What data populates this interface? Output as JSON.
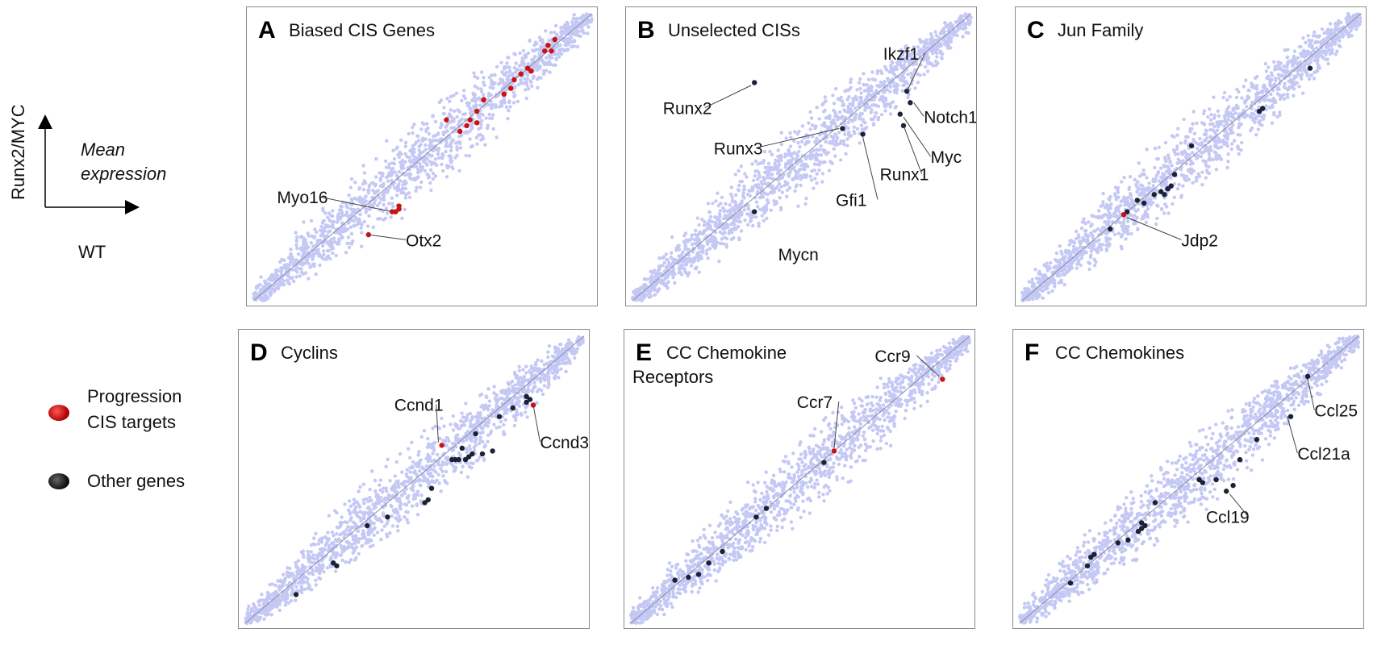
{
  "guide": {
    "ylabel": "Runx2/MYC",
    "xlabel": "WT",
    "note_line1": "Mean",
    "note_line2": "expression"
  },
  "legend": {
    "items": [
      {
        "line1": "Progression",
        "line2": "CIS targets",
        "color": "#cc1111"
      },
      {
        "line1": "Other genes",
        "line2": "",
        "color": "#1a1a2a"
      }
    ]
  },
  "colors": {
    "cloud": "#c4c8f4",
    "diagonal": "#8a8fa8",
    "red": "#cc1111",
    "dark": "#1a2233",
    "frame": "#8c8c8c"
  },
  "chart_data": [
    {
      "type": "scatter",
      "letter": "A",
      "title": "Biased CIS Genes",
      "xlim": [
        0,
        1
      ],
      "ylim": [
        0,
        1
      ],
      "points": [
        {
          "x": 0.87,
          "y": 0.89,
          "c": "red"
        },
        {
          "x": 0.89,
          "y": 0.91,
          "c": "red"
        },
        {
          "x": 0.86,
          "y": 0.87,
          "c": "red"
        },
        {
          "x": 0.88,
          "y": 0.87,
          "c": "red"
        },
        {
          "x": 0.57,
          "y": 0.63,
          "c": "red"
        },
        {
          "x": 0.64,
          "y": 0.63,
          "c": "red"
        },
        {
          "x": 0.66,
          "y": 0.62,
          "c": "red"
        },
        {
          "x": 0.63,
          "y": 0.61,
          "c": "red"
        },
        {
          "x": 0.61,
          "y": 0.59,
          "c": "red"
        },
        {
          "x": 0.68,
          "y": 0.7,
          "c": "red"
        },
        {
          "x": 0.66,
          "y": 0.66,
          "c": "red"
        },
        {
          "x": 0.74,
          "y": 0.72,
          "c": "red"
        },
        {
          "x": 0.76,
          "y": 0.74,
          "c": "red"
        },
        {
          "x": 0.77,
          "y": 0.77,
          "c": "red"
        },
        {
          "x": 0.79,
          "y": 0.79,
          "c": "red"
        },
        {
          "x": 0.81,
          "y": 0.81,
          "c": "red"
        },
        {
          "x": 0.82,
          "y": 0.8,
          "c": "red"
        },
        {
          "x": 0.42,
          "y": 0.31,
          "c": "red"
        },
        {
          "x": 0.43,
          "y": 0.32,
          "c": "red"
        },
        {
          "x": 0.41,
          "y": 0.31,
          "c": "red"
        },
        {
          "x": 0.43,
          "y": 0.33,
          "c": "red"
        },
        {
          "x": 0.34,
          "y": 0.23,
          "c": "red"
        }
      ],
      "labels": [
        {
          "text": "Myo16",
          "tx": 0.07,
          "ty": 0.34,
          "px": 0.41,
          "py": 0.31
        },
        {
          "text": "Otx2",
          "tx": 0.45,
          "ty": 0.19,
          "px": 0.34,
          "py": 0.23
        }
      ]
    },
    {
      "type": "scatter",
      "letter": "B",
      "title": "Unselected CISs",
      "xlim": [
        0,
        1
      ],
      "ylim": [
        0,
        1
      ],
      "points": [
        {
          "x": 0.36,
          "y": 0.76,
          "c": "dark"
        },
        {
          "x": 0.62,
          "y": 0.6,
          "c": "dark"
        },
        {
          "x": 0.68,
          "y": 0.58,
          "c": "dark"
        },
        {
          "x": 0.81,
          "y": 0.73,
          "c": "dark"
        },
        {
          "x": 0.82,
          "y": 0.69,
          "c": "dark"
        },
        {
          "x": 0.79,
          "y": 0.65,
          "c": "dark"
        },
        {
          "x": 0.8,
          "y": 0.61,
          "c": "dark"
        },
        {
          "x": 0.36,
          "y": 0.31,
          "c": "dark"
        }
      ],
      "labels": [
        {
          "text": "Runx2",
          "tx": 0.09,
          "ty": 0.65,
          "px": 0.35,
          "py": 0.75
        },
        {
          "text": "Ikzf1",
          "tx": 0.74,
          "ty": 0.84,
          "px": 0.81,
          "py": 0.73
        },
        {
          "text": "Notch1",
          "tx": 0.86,
          "ty": 0.62,
          "px": 0.83,
          "py": 0.69
        },
        {
          "text": "Runx3",
          "tx": 0.24,
          "ty": 0.51,
          "px": 0.61,
          "py": 0.6
        },
        {
          "text": "Myc",
          "tx": 0.88,
          "ty": 0.48,
          "px": 0.8,
          "py": 0.64
        },
        {
          "text": "Runx1",
          "tx": 0.73,
          "ty": 0.42,
          "px": 0.8,
          "py": 0.61
        },
        {
          "text": "Gfi1",
          "tx": 0.6,
          "ty": 0.33,
          "px": 0.68,
          "py": 0.57
        },
        {
          "text": "Mycn",
          "tx": 0.43,
          "ty": 0.14,
          "px": null,
          "py": null
        }
      ]
    },
    {
      "type": "scatter",
      "letter": "C",
      "title": "Jun Family",
      "xlim": [
        0,
        1
      ],
      "ylim": [
        0,
        1
      ],
      "points": [
        {
          "x": 0.85,
          "y": 0.81,
          "c": "dark"
        },
        {
          "x": 0.7,
          "y": 0.66,
          "c": "dark"
        },
        {
          "x": 0.71,
          "y": 0.67,
          "c": "dark"
        },
        {
          "x": 0.5,
          "y": 0.54,
          "c": "dark"
        },
        {
          "x": 0.45,
          "y": 0.44,
          "c": "dark"
        },
        {
          "x": 0.44,
          "y": 0.4,
          "c": "dark"
        },
        {
          "x": 0.43,
          "y": 0.39,
          "c": "dark"
        },
        {
          "x": 0.42,
          "y": 0.37,
          "c": "dark"
        },
        {
          "x": 0.39,
          "y": 0.37,
          "c": "dark"
        },
        {
          "x": 0.41,
          "y": 0.38,
          "c": "dark"
        },
        {
          "x": 0.36,
          "y": 0.34,
          "c": "dark"
        },
        {
          "x": 0.34,
          "y": 0.35,
          "c": "dark"
        },
        {
          "x": 0.31,
          "y": 0.31,
          "c": "dark"
        },
        {
          "x": 0.26,
          "y": 0.25,
          "c": "dark"
        },
        {
          "x": 0.3,
          "y": 0.3,
          "c": "red"
        }
      ],
      "labels": [
        {
          "text": "Jdp2",
          "tx": 0.47,
          "ty": 0.19,
          "px": 0.31,
          "py": 0.29
        }
      ]
    },
    {
      "type": "scatter",
      "letter": "D",
      "title": "Cyclins",
      "xlim": [
        0,
        1
      ],
      "ylim": [
        0,
        1
      ],
      "points": [
        {
          "x": 0.83,
          "y": 0.79,
          "c": "dark"
        },
        {
          "x": 0.84,
          "y": 0.78,
          "c": "dark"
        },
        {
          "x": 0.83,
          "y": 0.77,
          "c": "dark"
        },
        {
          "x": 0.79,
          "y": 0.75,
          "c": "dark"
        },
        {
          "x": 0.75,
          "y": 0.72,
          "c": "dark"
        },
        {
          "x": 0.58,
          "y": 0.62,
          "c": "red"
        },
        {
          "x": 0.68,
          "y": 0.66,
          "c": "dark"
        },
        {
          "x": 0.64,
          "y": 0.61,
          "c": "dark"
        },
        {
          "x": 0.61,
          "y": 0.57,
          "c": "dark"
        },
        {
          "x": 0.62,
          "y": 0.57,
          "c": "dark"
        },
        {
          "x": 0.63,
          "y": 0.57,
          "c": "dark"
        },
        {
          "x": 0.65,
          "y": 0.57,
          "c": "dark"
        },
        {
          "x": 0.66,
          "y": 0.58,
          "c": "dark"
        },
        {
          "x": 0.67,
          "y": 0.59,
          "c": "dark"
        },
        {
          "x": 0.7,
          "y": 0.59,
          "c": "dark"
        },
        {
          "x": 0.73,
          "y": 0.6,
          "c": "dark"
        },
        {
          "x": 0.55,
          "y": 0.47,
          "c": "dark"
        },
        {
          "x": 0.54,
          "y": 0.43,
          "c": "dark"
        },
        {
          "x": 0.53,
          "y": 0.42,
          "c": "dark"
        },
        {
          "x": 0.42,
          "y": 0.37,
          "c": "dark"
        },
        {
          "x": 0.36,
          "y": 0.34,
          "c": "dark"
        },
        {
          "x": 0.26,
          "y": 0.21,
          "c": "dark"
        },
        {
          "x": 0.27,
          "y": 0.2,
          "c": "dark"
        },
        {
          "x": 0.15,
          "y": 0.1,
          "c": "dark"
        },
        {
          "x": 0.85,
          "y": 0.76,
          "c": "red"
        }
      ],
      "labels": [
        {
          "text": "Ccnd1",
          "tx": 0.44,
          "ty": 0.74,
          "px": 0.57,
          "py": 0.63
        },
        {
          "text": "Ccnd3",
          "tx": 0.87,
          "ty": 0.61,
          "px": 0.85,
          "py": 0.76
        }
      ]
    },
    {
      "type": "scatter",
      "letter": "E",
      "title": "CC Chemokine Receptors",
      "title_line1": "CC Chemokine",
      "title_line2": "Receptors",
      "xlim": [
        0,
        1
      ],
      "ylim": [
        0,
        1
      ],
      "points": [
        {
          "x": 0.92,
          "y": 0.85,
          "c": "red"
        },
        {
          "x": 0.6,
          "y": 0.6,
          "c": "red"
        },
        {
          "x": 0.57,
          "y": 0.56,
          "c": "dark"
        },
        {
          "x": 0.4,
          "y": 0.4,
          "c": "dark"
        },
        {
          "x": 0.37,
          "y": 0.37,
          "c": "dark"
        },
        {
          "x": 0.27,
          "y": 0.25,
          "c": "dark"
        },
        {
          "x": 0.23,
          "y": 0.21,
          "c": "dark"
        },
        {
          "x": 0.2,
          "y": 0.17,
          "c": "dark"
        },
        {
          "x": 0.13,
          "y": 0.15,
          "c": "dark"
        },
        {
          "x": 0.17,
          "y": 0.16,
          "c": "dark"
        }
      ],
      "labels": [
        {
          "text": "Ccr9",
          "tx": 0.72,
          "ty": 0.91,
          "px": 0.91,
          "py": 0.86
        },
        {
          "text": "Ccr7",
          "tx": 0.49,
          "ty": 0.75,
          "px": 0.6,
          "py": 0.61
        }
      ]
    },
    {
      "type": "scatter",
      "letter": "F",
      "title": "CC Chemokines",
      "xlim": [
        0,
        1
      ],
      "ylim": [
        0,
        1
      ],
      "points": [
        {
          "x": 0.85,
          "y": 0.86,
          "c": "dark"
        },
        {
          "x": 0.8,
          "y": 0.72,
          "c": "dark"
        },
        {
          "x": 0.7,
          "y": 0.64,
          "c": "dark"
        },
        {
          "x": 0.65,
          "y": 0.57,
          "c": "dark"
        },
        {
          "x": 0.58,
          "y": 0.5,
          "c": "dark"
        },
        {
          "x": 0.61,
          "y": 0.46,
          "c": "dark"
        },
        {
          "x": 0.53,
          "y": 0.5,
          "c": "dark"
        },
        {
          "x": 0.54,
          "y": 0.49,
          "c": "dark"
        },
        {
          "x": 0.4,
          "y": 0.42,
          "c": "dark"
        },
        {
          "x": 0.37,
          "y": 0.34,
          "c": "dark"
        },
        {
          "x": 0.36,
          "y": 0.33,
          "c": "dark"
        },
        {
          "x": 0.35,
          "y": 0.32,
          "c": "dark"
        },
        {
          "x": 0.36,
          "y": 0.35,
          "c": "dark"
        },
        {
          "x": 0.32,
          "y": 0.29,
          "c": "dark"
        },
        {
          "x": 0.29,
          "y": 0.28,
          "c": "dark"
        },
        {
          "x": 0.22,
          "y": 0.24,
          "c": "dark"
        },
        {
          "x": 0.21,
          "y": 0.23,
          "c": "dark"
        },
        {
          "x": 0.2,
          "y": 0.2,
          "c": "dark"
        },
        {
          "x": 0.15,
          "y": 0.14,
          "c": "dark"
        },
        {
          "x": 0.63,
          "y": 0.48,
          "c": "dark"
        }
      ],
      "labels": [
        {
          "text": "Ccl25",
          "tx": 0.87,
          "ty": 0.72,
          "px": 0.85,
          "py": 0.85
        },
        {
          "text": "Ccl21a",
          "tx": 0.82,
          "ty": 0.57,
          "px": 0.79,
          "py": 0.72
        },
        {
          "text": "Ccl19",
          "tx": 0.55,
          "ty": 0.35,
          "px": 0.62,
          "py": 0.45
        }
      ]
    }
  ]
}
